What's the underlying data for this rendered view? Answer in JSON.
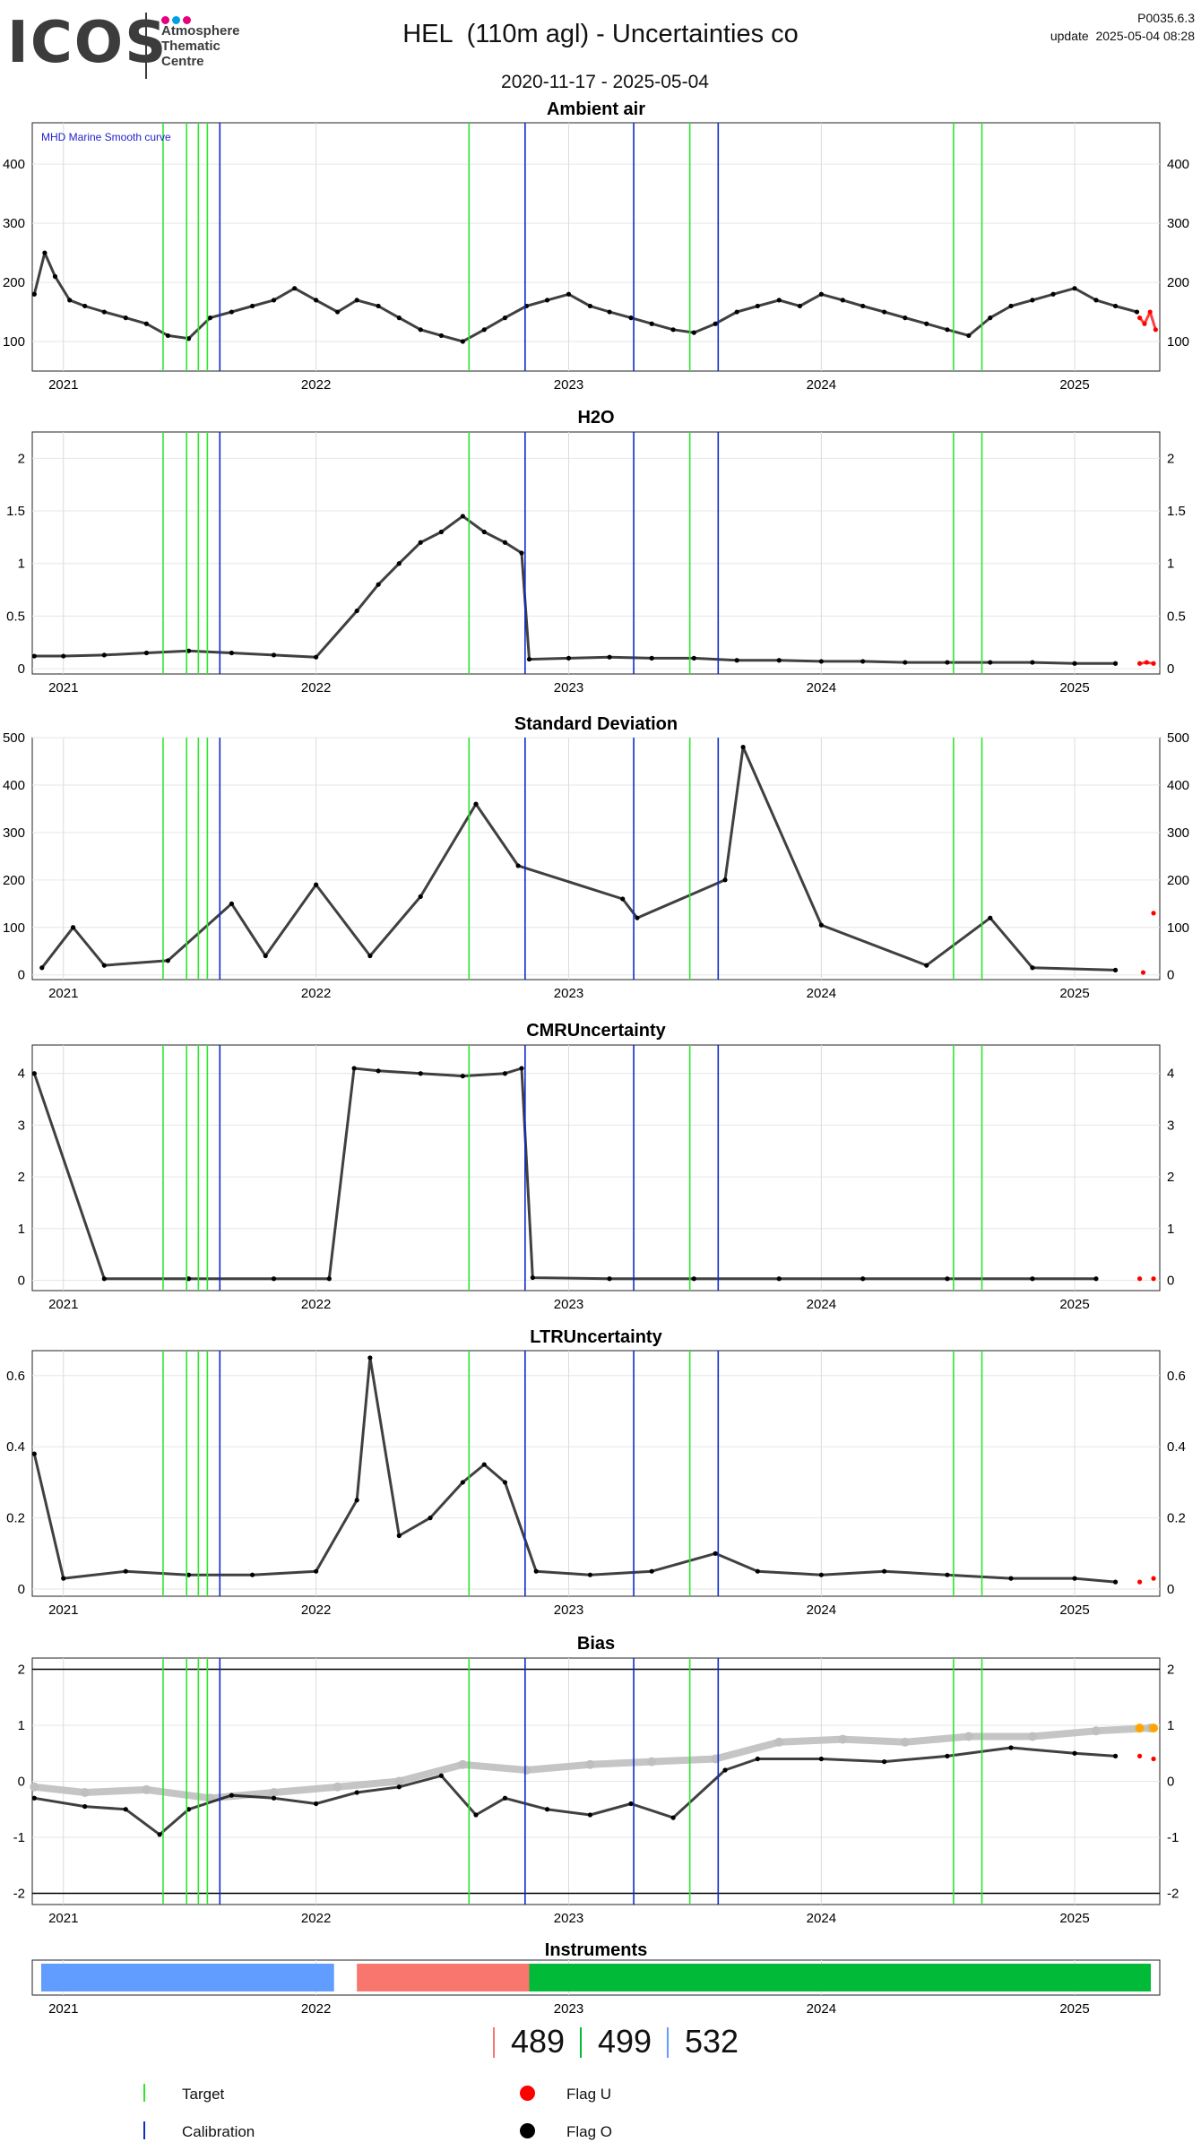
{
  "header": {
    "logo": {
      "word": "ICOS",
      "lines": [
        "Atmosphere",
        "Thematic",
        "Centre"
      ],
      "dot_colors": [
        "#e6007e",
        "#00a0e3",
        "#e6007e"
      ]
    },
    "title": "HEL  (110m agl) - Uncertainties co",
    "version": "P0035.6.3",
    "update": "update  2025-05-04 08:28",
    "date_range": "2020-11-17 - 2025-05-04"
  },
  "colors": {
    "target": "#2ee62e",
    "calibration": "#0d2ccc",
    "flag_u": "#ff0000",
    "flag_o": "#000000",
    "smooth": "#bfbfbf",
    "smooth_flagged": "#ffa500",
    "inst_489": "#f8766d",
    "inst_499": "#00ba38",
    "inst_532": "#619cff"
  },
  "chart_data": [
    {
      "id": "ambient",
      "type": "scatter",
      "title": "Ambient air",
      "annotation": "MHD Marine Smooth curve",
      "xlim": [
        "2020-11-17",
        "2025-05-04"
      ],
      "ylim": [
        50,
        470
      ],
      "yticks": [
        100,
        200,
        300,
        400
      ],
      "xticks": [
        "2021",
        "2022",
        "2023",
        "2024",
        "2025"
      ],
      "series": [
        {
          "name": "Flag O",
          "x": [
            "2020-11-20",
            "2020-12-05",
            "2020-12-20",
            "2021-01-10",
            "2021-02-01",
            "2021-03-01",
            "2021-04-01",
            "2021-05-01",
            "2021-06-01",
            "2021-07-01",
            "2021-08-01",
            "2021-09-01",
            "2021-10-01",
            "2021-11-01",
            "2021-12-01",
            "2022-01-01",
            "2022-02-01",
            "2022-03-01",
            "2022-04-01",
            "2022-05-01",
            "2022-06-01",
            "2022-07-01",
            "2022-08-01",
            "2022-09-01",
            "2022-10-01",
            "2022-11-01",
            "2022-12-01",
            "2023-01-01",
            "2023-02-01",
            "2023-03-01",
            "2023-04-01",
            "2023-05-01",
            "2023-06-01",
            "2023-07-01",
            "2023-08-01",
            "2023-09-01",
            "2023-10-01",
            "2023-11-01",
            "2023-12-01",
            "2024-01-01",
            "2024-02-01",
            "2024-03-01",
            "2024-04-01",
            "2024-05-01",
            "2024-06-01",
            "2024-07-01",
            "2024-08-01",
            "2024-09-01",
            "2024-10-01",
            "2024-11-01",
            "2024-12-01",
            "2025-01-01",
            "2025-02-01",
            "2025-03-01",
            "2025-04-01"
          ],
          "y": [
            180,
            250,
            210,
            170,
            160,
            150,
            140,
            130,
            110,
            105,
            140,
            150,
            160,
            170,
            190,
            170,
            150,
            170,
            160,
            140,
            120,
            110,
            100,
            120,
            140,
            160,
            170,
            180,
            160,
            150,
            140,
            130,
            120,
            115,
            130,
            150,
            160,
            170,
            160,
            180,
            170,
            160,
            150,
            140,
            130,
            120,
            110,
            140,
            160,
            170,
            180,
            190,
            170,
            160,
            150
          ]
        },
        {
          "name": "Flag U",
          "x": [
            "2025-04-05",
            "2025-04-12",
            "2025-04-20",
            "2025-04-28"
          ],
          "y": [
            140,
            130,
            150,
            120
          ]
        }
      ],
      "target_lines": [
        "2021-05-25",
        "2021-06-28",
        "2021-07-15",
        "2021-07-28",
        "2022-08-10",
        "2023-06-25",
        "2024-07-10",
        "2024-08-20"
      ],
      "calibration_lines": [
        "2021-08-15",
        "2022-10-30",
        "2023-04-05",
        "2023-08-05"
      ]
    },
    {
      "id": "h2o",
      "type": "scatter",
      "title": "H2O",
      "xlim": [
        "2020-11-17",
        "2025-05-04"
      ],
      "ylim": [
        -0.05,
        2.25
      ],
      "yticks": [
        0.0,
        0.5,
        1.0,
        1.5,
        2.0
      ],
      "xticks": [
        "2021",
        "2022",
        "2023",
        "2024",
        "2025"
      ],
      "series": [
        {
          "name": "Flag O",
          "x": [
            "2020-11-20",
            "2021-01-01",
            "2021-03-01",
            "2021-05-01",
            "2021-07-01",
            "2021-09-01",
            "2021-11-01",
            "2022-01-01",
            "2022-03-01",
            "2022-04-01",
            "2022-05-01",
            "2022-06-01",
            "2022-07-01",
            "2022-08-01",
            "2022-09-01",
            "2022-10-01",
            "2022-10-25",
            "2022-11-05",
            "2023-01-01",
            "2023-03-01",
            "2023-05-01",
            "2023-07-01",
            "2023-09-01",
            "2023-11-01",
            "2024-01-01",
            "2024-03-01",
            "2024-05-01",
            "2024-07-01",
            "2024-09-01",
            "2024-11-01",
            "2025-01-01",
            "2025-03-01"
          ],
          "y": [
            0.12,
            0.12,
            0.13,
            0.15,
            0.17,
            0.15,
            0.13,
            0.11,
            0.55,
            0.8,
            1.0,
            1.2,
            1.3,
            1.45,
            1.3,
            1.2,
            1.1,
            0.09,
            0.1,
            0.11,
            0.1,
            0.1,
            0.08,
            0.08,
            0.07,
            0.07,
            0.06,
            0.06,
            0.06,
            0.06,
            0.05,
            0.05
          ]
        },
        {
          "name": "Flag U",
          "x": [
            "2025-04-05",
            "2025-04-15",
            "2025-04-25"
          ],
          "y": [
            0.05,
            0.06,
            0.05
          ]
        }
      ],
      "target_lines": [
        "2021-05-25",
        "2021-06-28",
        "2021-07-15",
        "2021-07-28",
        "2022-08-10",
        "2023-06-25",
        "2024-07-10",
        "2024-08-20"
      ],
      "calibration_lines": [
        "2021-08-15",
        "2022-10-30",
        "2023-04-05",
        "2023-08-05"
      ]
    },
    {
      "id": "stddev",
      "type": "scatter",
      "title": "Standard Deviation",
      "xlim": [
        "2020-11-17",
        "2025-05-04"
      ],
      "ylim": [
        -10,
        500
      ],
      "yticks": [
        0,
        100,
        200,
        300,
        400,
        500
      ],
      "xticks": [
        "2021",
        "2022",
        "2023",
        "2024",
        "2025"
      ],
      "series": [
        {
          "name": "Flag O",
          "x": [
            "2020-12-01",
            "2021-01-15",
            "2021-03-01",
            "2021-06-01",
            "2021-09-01",
            "2021-10-20",
            "2022-01-01",
            "2022-03-20",
            "2022-06-01",
            "2022-08-20",
            "2022-10-20",
            "2023-03-20",
            "2023-04-10",
            "2023-08-15",
            "2023-09-10",
            "2024-01-01",
            "2024-06-01",
            "2024-09-01",
            "2024-11-01",
            "2025-03-01"
          ],
          "y": [
            15,
            100,
            20,
            30,
            150,
            40,
            190,
            40,
            165,
            360,
            230,
            160,
            120,
            200,
            480,
            105,
            20,
            120,
            15,
            10
          ]
        },
        {
          "name": "Flag U",
          "x": [
            "2025-04-10",
            "2025-04-25"
          ],
          "y": [
            5,
            130
          ]
        }
      ],
      "target_lines": [
        "2021-05-25",
        "2021-06-28",
        "2021-07-15",
        "2021-07-28",
        "2022-08-10",
        "2023-06-25",
        "2024-07-10",
        "2024-08-20"
      ],
      "calibration_lines": [
        "2021-08-15",
        "2022-10-30",
        "2023-04-05",
        "2023-08-05"
      ]
    },
    {
      "id": "cmr",
      "type": "scatter",
      "title": "CMRUncertainty",
      "xlim": [
        "2020-11-17",
        "2025-05-04"
      ],
      "ylim": [
        -0.2,
        4.55
      ],
      "yticks": [
        0,
        1,
        2,
        3,
        4
      ],
      "xticks": [
        "2021",
        "2022",
        "2023",
        "2024",
        "2025"
      ],
      "series": [
        {
          "name": "Flag O",
          "x": [
            "2020-11-20",
            "2021-03-01",
            "2021-07-01",
            "2021-11-01",
            "2022-01-20",
            "2022-02-25",
            "2022-04-01",
            "2022-06-01",
            "2022-08-01",
            "2022-10-01",
            "2022-10-25",
            "2022-11-10",
            "2023-03-01",
            "2023-07-01",
            "2023-11-01",
            "2024-03-01",
            "2024-07-01",
            "2024-11-01",
            "2025-02-01"
          ],
          "y": [
            4.0,
            0.03,
            0.03,
            0.03,
            0.03,
            4.1,
            4.05,
            4.0,
            3.95,
            4.0,
            4.1,
            0.05,
            0.03,
            0.03,
            0.03,
            0.03,
            0.03,
            0.03,
            0.03
          ]
        },
        {
          "name": "Flag U",
          "x": [
            "2025-04-05",
            "2025-04-25"
          ],
          "y": [
            0.03,
            0.03
          ]
        }
      ],
      "target_lines": [
        "2021-05-25",
        "2021-06-28",
        "2021-07-15",
        "2021-07-28",
        "2022-08-10",
        "2023-06-25",
        "2024-07-10",
        "2024-08-20"
      ],
      "calibration_lines": [
        "2021-08-15",
        "2022-10-30",
        "2023-04-05",
        "2023-08-05"
      ]
    },
    {
      "id": "ltr",
      "type": "scatter",
      "title": "LTRUncertainty",
      "xlim": [
        "2020-11-17",
        "2025-05-04"
      ],
      "ylim": [
        -0.02,
        0.67
      ],
      "yticks": [
        0.0,
        0.2,
        0.4,
        0.6
      ],
      "xticks": [
        "2021",
        "2022",
        "2023",
        "2024",
        "2025"
      ],
      "series": [
        {
          "name": "Flag O",
          "x": [
            "2020-11-20",
            "2021-01-01",
            "2021-04-01",
            "2021-07-01",
            "2021-10-01",
            "2022-01-01",
            "2022-03-01",
            "2022-03-20",
            "2022-05-01",
            "2022-06-15",
            "2022-08-01",
            "2022-09-01",
            "2022-10-01",
            "2022-11-15",
            "2023-02-01",
            "2023-05-01",
            "2023-08-01",
            "2023-10-01",
            "2024-01-01",
            "2024-04-01",
            "2024-07-01",
            "2024-10-01",
            "2025-01-01",
            "2025-03-01"
          ],
          "y": [
            0.38,
            0.03,
            0.05,
            0.04,
            0.04,
            0.05,
            0.25,
            0.65,
            0.15,
            0.2,
            0.3,
            0.35,
            0.3,
            0.05,
            0.04,
            0.05,
            0.1,
            0.05,
            0.04,
            0.05,
            0.04,
            0.03,
            0.03,
            0.02
          ]
        },
        {
          "name": "Flag U",
          "x": [
            "2025-04-05",
            "2025-04-25"
          ],
          "y": [
            0.02,
            0.03
          ]
        }
      ],
      "target_lines": [
        "2021-05-25",
        "2021-06-28",
        "2021-07-15",
        "2021-07-28",
        "2022-08-10",
        "2023-06-25",
        "2024-07-10",
        "2024-08-20"
      ],
      "calibration_lines": [
        "2021-08-15",
        "2022-10-30",
        "2023-04-05",
        "2023-08-05"
      ]
    },
    {
      "id": "bias",
      "type": "scatter",
      "title": "Bias",
      "xlim": [
        "2020-11-17",
        "2025-05-04"
      ],
      "ylim": [
        -2.2,
        2.2
      ],
      "yticks": [
        -2,
        -1,
        0,
        1,
        2
      ],
      "xticks": [
        "2021",
        "2022",
        "2023",
        "2024",
        "2025"
      ],
      "hlines": [
        -2,
        2
      ],
      "series": [
        {
          "name": "Smooth",
          "x": [
            "2020-11-20",
            "2021-02-01",
            "2021-05-01",
            "2021-08-01",
            "2021-11-01",
            "2022-02-01",
            "2022-05-01",
            "2022-08-01",
            "2022-11-01",
            "2023-02-01",
            "2023-05-01",
            "2023-08-01",
            "2023-11-01",
            "2024-02-01",
            "2024-05-01",
            "2024-08-01",
            "2024-11-01",
            "2025-02-01",
            "2025-04-20"
          ],
          "y": [
            -0.1,
            -0.2,
            -0.15,
            -0.3,
            -0.2,
            -0.1,
            0.0,
            0.3,
            0.2,
            0.3,
            0.35,
            0.4,
            0.7,
            0.75,
            0.7,
            0.8,
            0.8,
            0.9,
            0.95
          ]
        },
        {
          "name": "Flag O",
          "x": [
            "2020-11-20",
            "2021-02-01",
            "2021-04-01",
            "2021-05-20",
            "2021-07-01",
            "2021-09-01",
            "2021-11-01",
            "2022-01-01",
            "2022-03-01",
            "2022-05-01",
            "2022-07-01",
            "2022-08-20",
            "2022-10-01",
            "2022-12-01",
            "2023-02-01",
            "2023-04-01",
            "2023-06-01",
            "2023-08-15",
            "2023-10-01",
            "2024-01-01",
            "2024-04-01",
            "2024-07-01",
            "2024-10-01",
            "2025-01-01",
            "2025-03-01"
          ],
          "y": [
            -0.3,
            -0.45,
            -0.5,
            -0.95,
            -0.5,
            -0.25,
            -0.3,
            -0.4,
            -0.2,
            -0.1,
            0.1,
            -0.6,
            -0.3,
            -0.5,
            -0.6,
            -0.4,
            -0.65,
            0.2,
            0.4,
            0.4,
            0.35,
            0.45,
            0.6,
            0.5,
            0.45
          ]
        },
        {
          "name": "Flag U",
          "x": [
            "2025-04-05",
            "2025-04-25"
          ],
          "y": [
            0.45,
            0.4
          ]
        },
        {
          "name": "Smooth flagged",
          "x": [
            "2025-04-05",
            "2025-04-25"
          ],
          "y": [
            0.95,
            0.95
          ]
        }
      ],
      "target_lines": [
        "2021-05-25",
        "2021-06-28",
        "2021-07-15",
        "2021-07-28",
        "2022-08-10",
        "2023-06-25",
        "2024-07-10",
        "2024-08-20"
      ],
      "calibration_lines": [
        "2021-08-15",
        "2022-10-30",
        "2023-04-05",
        "2023-08-05"
      ]
    },
    {
      "id": "instruments",
      "type": "bar",
      "title": "Instruments",
      "xlim": [
        "2020-11-17",
        "2025-05-04"
      ],
      "xticks": [
        "2021",
        "2022",
        "2023",
        "2024",
        "2025"
      ],
      "segments": [
        {
          "instrument": "532",
          "start": "2020-11-17",
          "end": "2022-01-27"
        },
        {
          "instrument": "489",
          "start": "2022-03-01",
          "end": "2022-11-05"
        },
        {
          "instrument": "499",
          "start": "2022-11-05",
          "end": "2025-05-04"
        }
      ],
      "legend": [
        "489",
        "499",
        "532"
      ]
    }
  ],
  "legend": {
    "target": "Target",
    "calibration": "Calibration",
    "flag_u": "Flag U",
    "flag_o": "Flag O"
  }
}
